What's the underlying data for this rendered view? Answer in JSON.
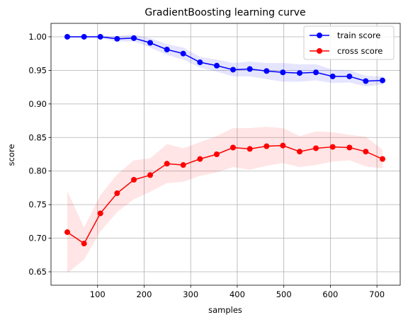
{
  "chart_data": {
    "type": "line",
    "title": "GradientBoosting learning curve",
    "xlabel": "samples",
    "ylabel": "score",
    "xlim": [
      0,
      750
    ],
    "ylim": [
      0.63,
      1.02
    ],
    "x_ticks": [
      100,
      200,
      300,
      400,
      500,
      600,
      700
    ],
    "y_ticks": [
      0.65,
      0.7,
      0.75,
      0.8,
      0.85,
      0.9,
      0.95,
      1.0
    ],
    "grid": true,
    "legend_position": "top-right",
    "x": [
      35,
      71,
      106,
      142,
      178,
      213,
      249,
      284,
      320,
      356,
      391,
      427,
      463,
      498,
      534,
      569,
      605,
      641,
      676,
      712
    ],
    "series": [
      {
        "name": "train score",
        "color": "#0000ff",
        "values": [
          1.0,
          1.0,
          1.0,
          0.997,
          0.998,
          0.991,
          0.981,
          0.975,
          0.962,
          0.957,
          0.951,
          0.952,
          0.949,
          0.947,
          0.946,
          0.947,
          0.941,
          0.941,
          0.934,
          0.935
        ],
        "band_lower": [
          0.999,
          0.999,
          0.998,
          0.993,
          0.993,
          0.984,
          0.973,
          0.966,
          0.954,
          0.948,
          0.941,
          0.941,
          0.937,
          0.933,
          0.933,
          0.935,
          0.931,
          0.932,
          0.926,
          0.929
        ],
        "band_upper": [
          1.001,
          1.001,
          1.002,
          1.001,
          1.003,
          0.998,
          0.989,
          0.984,
          0.97,
          0.966,
          0.961,
          0.963,
          0.961,
          0.961,
          0.959,
          0.959,
          0.951,
          0.95,
          0.942,
          0.941
        ]
      },
      {
        "name": "cross score",
        "color": "#ff0000",
        "values": [
          0.709,
          0.692,
          0.737,
          0.767,
          0.787,
          0.794,
          0.811,
          0.809,
          0.818,
          0.825,
          0.835,
          0.833,
          0.837,
          0.838,
          0.829,
          0.834,
          0.836,
          0.835,
          0.829,
          0.818
        ],
        "band_lower": [
          0.648,
          0.668,
          0.71,
          0.739,
          0.758,
          0.769,
          0.782,
          0.784,
          0.793,
          0.798,
          0.806,
          0.802,
          0.808,
          0.812,
          0.806,
          0.809,
          0.814,
          0.816,
          0.807,
          0.804
        ],
        "band_upper": [
          0.77,
          0.716,
          0.764,
          0.795,
          0.816,
          0.819,
          0.84,
          0.834,
          0.843,
          0.852,
          0.864,
          0.864,
          0.866,
          0.864,
          0.852,
          0.859,
          0.858,
          0.854,
          0.851,
          0.832
        ]
      }
    ]
  }
}
